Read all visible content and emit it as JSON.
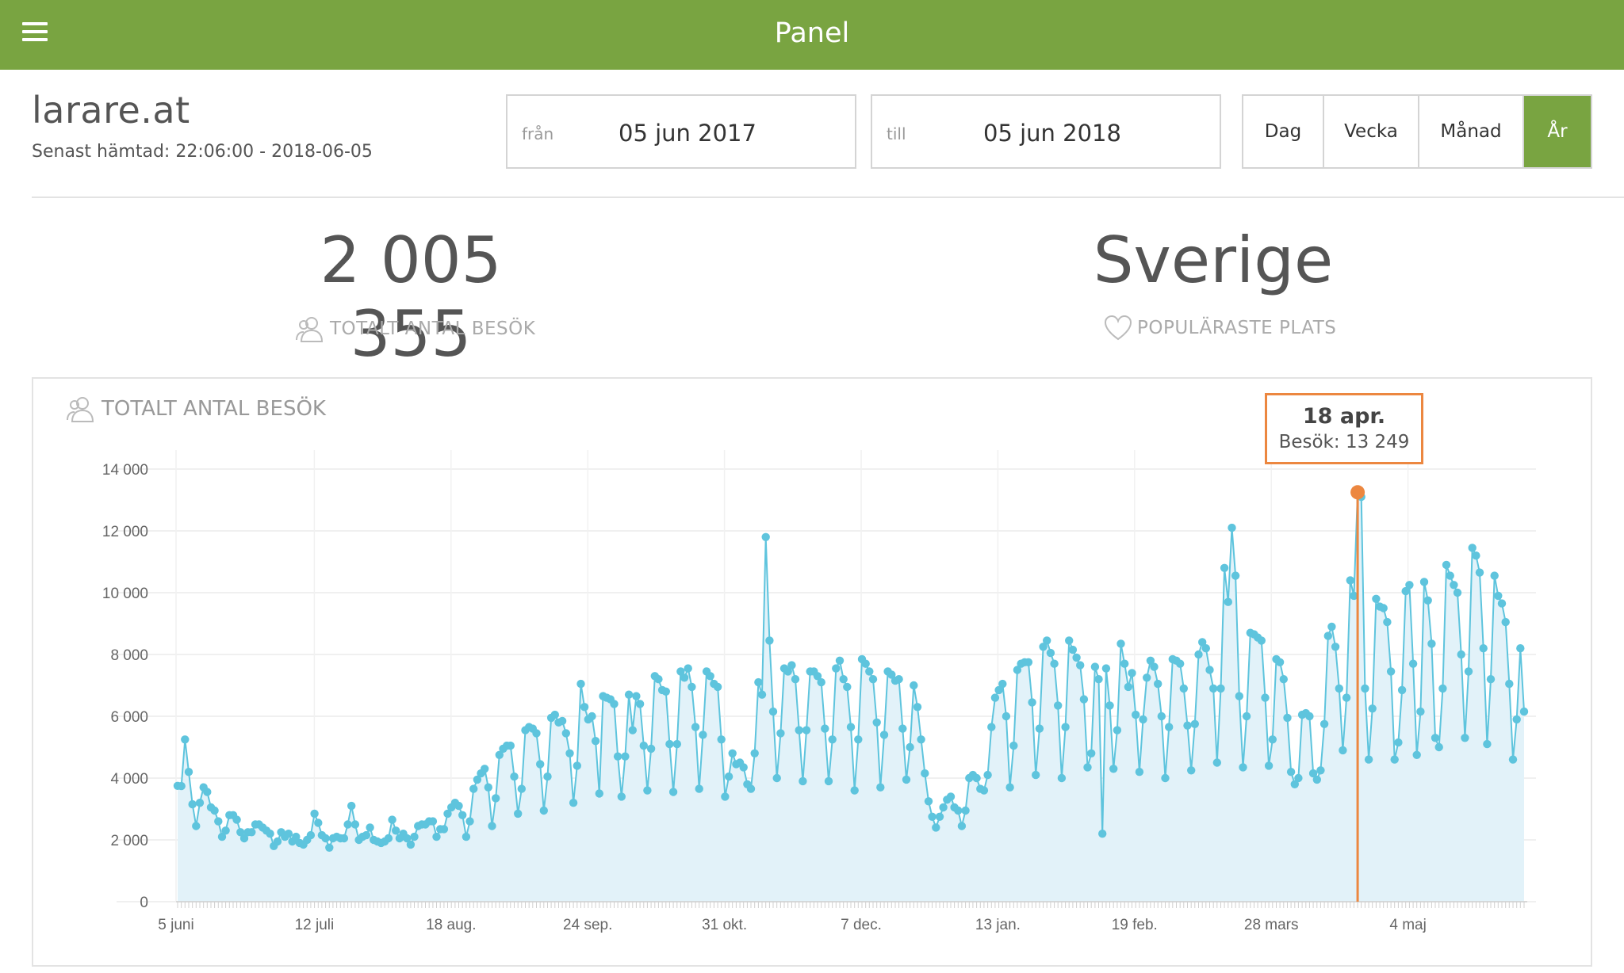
{
  "header": {
    "title": "Panel",
    "menu_icon": "hamburger-icon"
  },
  "site": {
    "name": "larare.at",
    "last_fetched": "Senast hämtad: 22:06:00 - 2018-06-05"
  },
  "date_range": {
    "from_label": "från",
    "from_value": "05 jun 2017",
    "to_label": "till",
    "to_value": "05 jun 2018"
  },
  "period_buttons": [
    {
      "label": "Dag",
      "active": false
    },
    {
      "label": "Vecka",
      "active": false
    },
    {
      "label": "Månad",
      "active": false
    },
    {
      "label": "År",
      "active": true
    }
  ],
  "kpis": {
    "total_visits": {
      "value": "2 005 355",
      "label": "TOTALT ANTAL BESÖK",
      "icon": "users-icon"
    },
    "popular_place": {
      "value": "Sverige",
      "label": "POPULÄRASTE PLATS",
      "icon": "heart-icon"
    }
  },
  "chart_panel": {
    "title": "TOTALT ANTAL BESÖK",
    "icon": "users-icon"
  },
  "tooltip": {
    "date": "18 apr.",
    "value": "Besök: 13 249"
  },
  "colors": {
    "accent": "#79a441",
    "line": "#5ec4dd",
    "area": "#e2f2f9",
    "highlight": "#ec8740"
  },
  "chart_data": {
    "type": "area",
    "title": "TOTALT ANTAL BESÖK",
    "xlabel": "",
    "ylabel": "",
    "x_start": "2017-06-05",
    "x_end": "2018-06-05",
    "x_tick_labels": [
      "5 juni",
      "12 juli",
      "18 aug.",
      "24 sep.",
      "31 okt.",
      "7 dec.",
      "13 jan.",
      "19 feb.",
      "28 mars",
      "4 maj"
    ],
    "y_ticks": [
      0,
      2000,
      4000,
      6000,
      8000,
      10000,
      12000,
      14000
    ],
    "y_tick_labels": [
      "0",
      "2 000",
      "4 000",
      "6 000",
      "8 000",
      "10 000",
      "12 000",
      "14 000"
    ],
    "ylim": [
      0,
      14000
    ],
    "grid": true,
    "legend": "none",
    "highlight": {
      "date": "2018-04-18",
      "label": "18 apr.",
      "value": 13249
    },
    "series": [
      {
        "name": "Besök",
        "values": [
          3750,
          3740,
          5250,
          4200,
          3150,
          2450,
          3200,
          3700,
          3550,
          3050,
          2950,
          2600,
          2100,
          2300,
          2800,
          2800,
          2650,
          2250,
          2050,
          2250,
          2250,
          2500,
          2500,
          2400,
          2300,
          2200,
          1800,
          1950,
          2250,
          2100,
          2200,
          1950,
          2100,
          1900,
          1850,
          2000,
          2150,
          2850,
          2550,
          2150,
          2050,
          1750,
          2050,
          2100,
          2050,
          2050,
          2500,
          3100,
          2500,
          2000,
          2100,
          2150,
          2400,
          2000,
          1950,
          1900,
          1950,
          2050,
          2650,
          2300,
          2050,
          2200,
          2050,
          1850,
          2100,
          2450,
          2500,
          2500,
          2600,
          2600,
          2100,
          2350,
          2350,
          2850,
          3050,
          3200,
          3100,
          2800,
          2100,
          2600,
          3650,
          3950,
          4150,
          4300,
          3700,
          2450,
          3350,
          4750,
          4950,
          5050,
          5050,
          4050,
          2850,
          3650,
          5550,
          5650,
          5600,
          5450,
          4450,
          2950,
          4050,
          5950,
          6050,
          5800,
          5850,
          5450,
          4800,
          3200,
          4400,
          7050,
          6300,
          5900,
          6000,
          5200,
          3500,
          6650,
          6600,
          6550,
          6400,
          4700,
          3400,
          4700,
          6700,
          5550,
          6650,
          6400,
          5050,
          3600,
          4950,
          7300,
          7200,
          6850,
          6800,
          5100,
          3550,
          5100,
          7450,
          7250,
          7550,
          6950,
          5650,
          3650,
          5400,
          7450,
          7300,
          7050,
          6950,
          5250,
          3400,
          4050,
          4800,
          4450,
          4500,
          4350,
          3800,
          3650,
          4800,
          7100,
          6700,
          11800,
          8450,
          6150,
          4000,
          5450,
          7550,
          7450,
          7650,
          7200,
          5550,
          3900,
          5550,
          7450,
          7450,
          7300,
          7100,
          5600,
          3900,
          5250,
          7550,
          7800,
          7200,
          6950,
          5650,
          3600,
          5250,
          7850,
          7700,
          7450,
          7200,
          5800,
          3700,
          5400,
          7450,
          7350,
          7150,
          7200,
          5600,
          3950,
          5000,
          7000,
          6300,
          5250,
          4150,
          3250,
          2750,
          2400,
          2750,
          3050,
          3300,
          3400,
          3050,
          2950,
          2450,
          2950,
          4000,
          4100,
          4000,
          3650,
          3600,
          4100,
          5650,
          6600,
          6850,
          7050,
          6000,
          3700,
          5050,
          7500,
          7700,
          7750,
          7750,
          6450,
          4100,
          5600,
          8250,
          8450,
          8050,
          7700,
          6350,
          4000,
          5650,
          8450,
          8150,
          7900,
          7650,
          6550,
          4350,
          4800,
          7600,
          7200,
          2200,
          7550,
          6350,
          4300,
          5550,
          8350,
          7700,
          6950,
          7400,
          6050,
          4200,
          5900,
          7250,
          7800,
          7600,
          7050,
          6000,
          4000,
          5650,
          7850,
          7800,
          7700,
          6900,
          5700,
          4250,
          5750,
          8000,
          8400,
          8200,
          7500,
          6900,
          4500,
          6900,
          10800,
          9700,
          12100,
          10550,
          6650,
          4350,
          6000,
          8700,
          8650,
          8550,
          8450,
          6600,
          4400,
          5250,
          7850,
          7750,
          7200,
          5950,
          4200,
          3800,
          4000,
          6050,
          6100,
          6000,
          4150,
          3950,
          4250,
          5750,
          8600,
          8900,
          8250,
          6900,
          4900,
          6600,
          10400,
          9900,
          13249,
          13100,
          6900,
          4600,
          6250,
          9800,
          9550,
          9500,
          9050,
          7450,
          4600,
          5150,
          6850,
          10050,
          10250,
          7700,
          4750,
          6150,
          10350,
          9750,
          8350,
          5300,
          5000,
          6900,
          10900,
          10550,
          10250,
          10000,
          8000,
          5300,
          7450,
          11450,
          11200,
          10650,
          8200,
          5100,
          7200,
          10550,
          9900,
          9650,
          9050,
          7050,
          4600,
          5900,
          8200,
          6150
        ]
      }
    ]
  }
}
